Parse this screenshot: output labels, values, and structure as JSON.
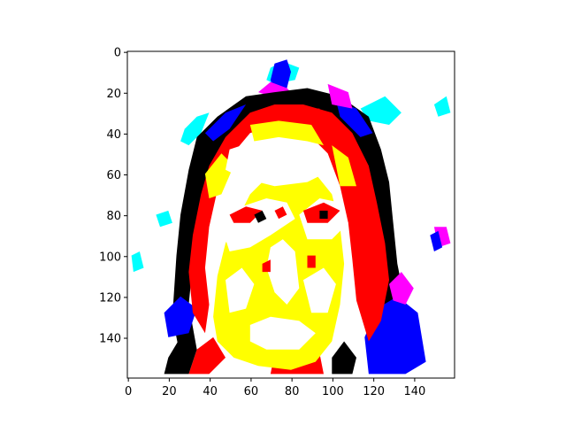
{
  "chart_data": {
    "type": "heatmap",
    "title": "",
    "xlabel": "",
    "ylabel": "",
    "grid": false,
    "image_size": [
      160,
      160
    ],
    "xlim": [
      -0.5,
      159.5
    ],
    "ylim": [
      159.5,
      -0.5
    ],
    "y_inverted": true,
    "x_ticks": [
      0,
      20,
      40,
      60,
      80,
      100,
      120,
      140
    ],
    "y_ticks": [
      0,
      20,
      40,
      60,
      80,
      100,
      120,
      140
    ],
    "x_tick_labels": [
      "0",
      "20",
      "40",
      "60",
      "80",
      "100",
      "120",
      "140"
    ],
    "y_tick_labels": [
      "0",
      "20",
      "40",
      "60",
      "80",
      "100",
      "120",
      "140"
    ],
    "palette": {
      "white": "#ffffff",
      "yellow": "#ffff00",
      "red": "#ff0000",
      "black": "#000000",
      "blue": "#0000ff",
      "magenta": "#ff00ff",
      "cyan": "#00ffff",
      "green": "#00ff00"
    },
    "content": "posterized 8-color image of a portrait face; background white, face highlights white, midtones yellow, hair outline red/black/blue/magenta with cyan fringes"
  }
}
